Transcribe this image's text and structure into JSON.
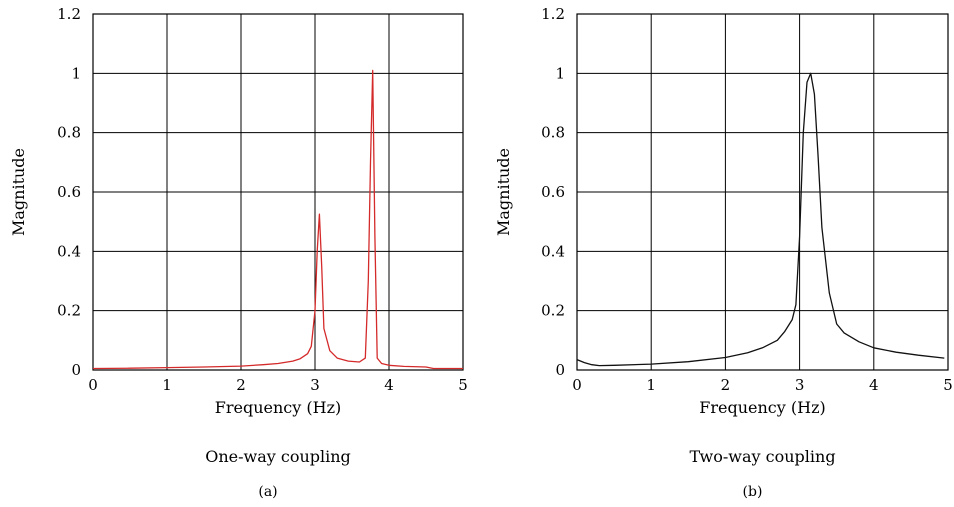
{
  "chart_data": [
    {
      "type": "line",
      "panel": "(a)",
      "caption": "One-way coupling",
      "xlabel": "Frequency (Hz)",
      "ylabel": "Magnitude",
      "xlim": [
        0,
        5
      ],
      "ylim": [
        0,
        1.2
      ],
      "xticks": [
        "0",
        "1",
        "2",
        "3",
        "4",
        "5"
      ],
      "yticks": [
        "0",
        "0.2",
        "0.4",
        "0.6",
        "0.8",
        "1",
        "1.2"
      ],
      "grid": true,
      "line_color": "#d42a2a",
      "series": [
        {
          "x": [
            0,
            0.5,
            1.0,
            1.5,
            2.0,
            2.3,
            2.5,
            2.7,
            2.8,
            2.9,
            2.95,
            3.0,
            3.03,
            3.06,
            3.09,
            3.12,
            3.2,
            3.3,
            3.45,
            3.6,
            3.68,
            3.72,
            3.75,
            3.78,
            3.81,
            3.84,
            3.9,
            4.0,
            4.2,
            4.5,
            4.6,
            5.0
          ],
          "y": [
            0.005,
            0.006,
            0.008,
            0.01,
            0.013,
            0.018,
            0.022,
            0.03,
            0.038,
            0.055,
            0.08,
            0.2,
            0.4,
            0.525,
            0.35,
            0.14,
            0.065,
            0.04,
            0.03,
            0.027,
            0.04,
            0.3,
            0.7,
            1.01,
            0.45,
            0.04,
            0.022,
            0.016,
            0.012,
            0.01,
            0.005,
            0.005
          ]
        }
      ]
    },
    {
      "type": "line",
      "panel": "(b)",
      "caption": "Two-way coupling",
      "xlabel": "Frequency (Hz)",
      "ylabel": "Magnitude",
      "xlim": [
        0,
        5
      ],
      "ylim": [
        0,
        1.2
      ],
      "xticks": [
        "0",
        "1",
        "2",
        "3",
        "4",
        "5"
      ],
      "yticks": [
        "0",
        "0.2",
        "0.4",
        "0.6",
        "0.8",
        "1",
        "1.2"
      ],
      "grid": true,
      "line_color": "#111111",
      "series": [
        {
          "x": [
            0,
            0.1,
            0.2,
            0.3,
            0.5,
            1.0,
            1.5,
            2.0,
            2.3,
            2.5,
            2.7,
            2.8,
            2.9,
            2.95,
            3.0,
            3.05,
            3.1,
            3.15,
            3.2,
            3.25,
            3.3,
            3.4,
            3.5,
            3.6,
            3.8,
            4.0,
            4.3,
            4.6,
            4.95
          ],
          "y": [
            0.035,
            0.025,
            0.018,
            0.015,
            0.016,
            0.02,
            0.028,
            0.042,
            0.058,
            0.075,
            0.1,
            0.13,
            0.17,
            0.22,
            0.45,
            0.8,
            0.97,
            1.0,
            0.93,
            0.72,
            0.48,
            0.26,
            0.155,
            0.125,
            0.095,
            0.075,
            0.06,
            0.05,
            0.04
          ]
        }
      ]
    }
  ]
}
